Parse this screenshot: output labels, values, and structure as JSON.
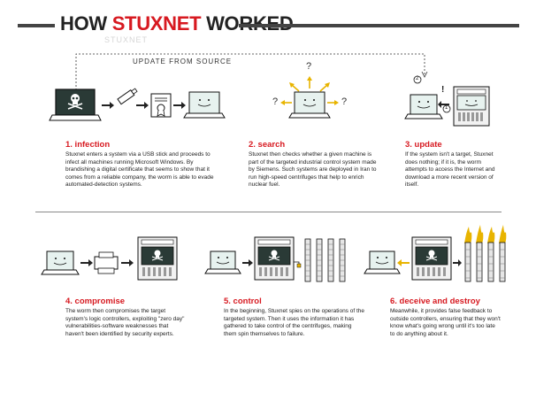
{
  "header": {
    "title_prefix": "HOW ",
    "title_highlight": "STUXNET",
    "title_suffix": " WORKED",
    "accent_color": "#d71920",
    "ghost_text": "STUXNET"
  },
  "update_from_source": "UPDATE FROM SOURCE",
  "marks": {
    "question": "?",
    "exclaim": "!",
    "step1": "1",
    "step2": "2"
  },
  "steps": [
    {
      "title": "1. infection",
      "text": "Stuxnet enters a system via a USB stick and proceeds to infect all machines running Microsoft Windows. By brandishing a digital certificate that seems to show that it comes from a reliable company, the worm is able to evade automated-detection systems."
    },
    {
      "title": "2. search",
      "text": "Stuxnet then checks whether a given machine is part of the targeted industrial control system made by Siemens. Such systems are deployed in Iran to run high-speed centrifuges that help to enrich nuclear fuel."
    },
    {
      "title": "3. update",
      "text": "If the system isn't a target, Stuxnet does nothing; if it is, the worm attempts to access the Internet and download a more recent version of itself."
    },
    {
      "title": "4. compromise",
      "text": "The worm then compromises the target system's logic controllers, exploiting \"zero day\" vulnerabilities-software weaknesses that haven't been identified by security experts."
    },
    {
      "title": "5. control",
      "text": "In the beginning, Stuxnet spies on the operations of the targeted system. Then it uses the information it has gathered to take control of the centrifuges, making them spin themselves to failure."
    },
    {
      "title": "6. deceive and destroy",
      "text": "Meanwhile, it provides false feedback to outside controllers, ensuring that they won't know what's going wrong until it's too late to do anything about it."
    }
  ],
  "icons": [
    "laptop-icon",
    "skull-icon",
    "usb-stick-icon",
    "certificate-icon",
    "smiley-icon",
    "question-mark-icon",
    "rack-icon",
    "printer-icon",
    "centrifuge-icon",
    "fire-icon",
    "arrow-icon"
  ]
}
